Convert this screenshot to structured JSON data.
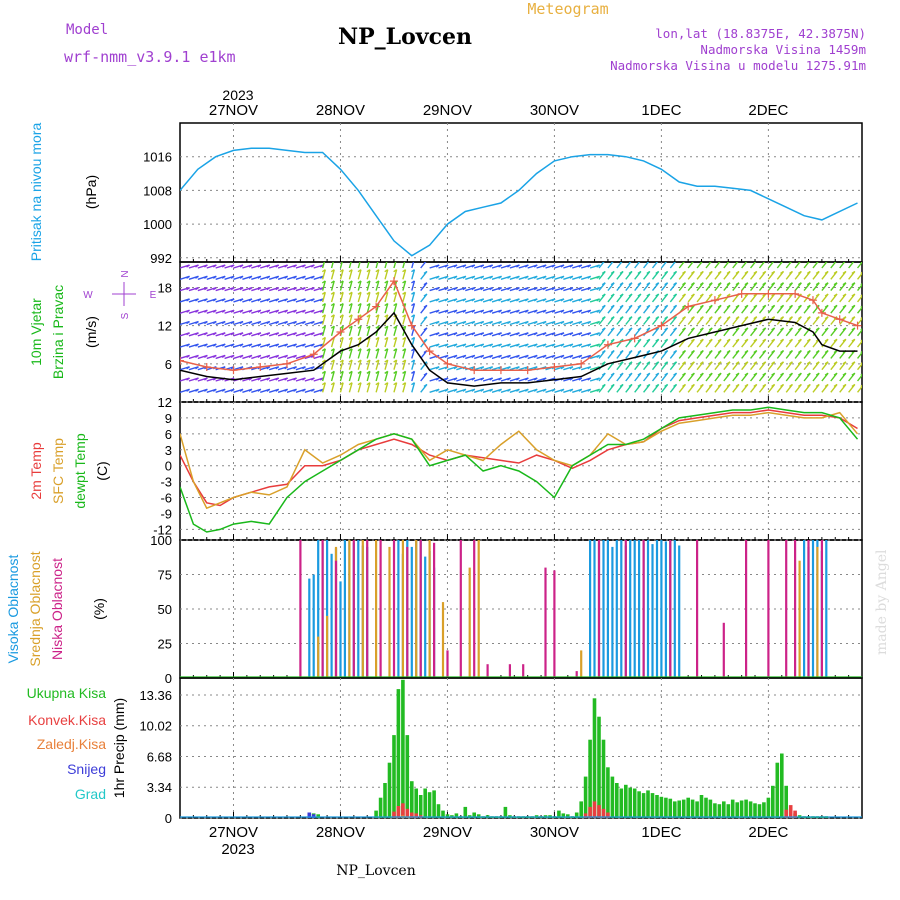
{
  "header": {
    "model_label": "Model",
    "model_name": "wrf-nmm_v3.9.1 e1km",
    "title": "NP_Lovcen",
    "subtitle": "Meteogram",
    "lonlat": "lon,lat (18.8375E, 42.3875N)",
    "elevation": "Nadmorska Visina 1459m",
    "model_elevation": "Nadmorska Visina u modelu 1275.91m",
    "footer": "NP_Lovcen",
    "credit": "made by Angel"
  },
  "time_axis": {
    "year": "2023",
    "days": [
      "27NOV",
      "28NOV",
      "29NOV",
      "30NOV",
      "1DEC",
      "2DEC"
    ]
  },
  "colors": {
    "pressure": "#1aa3e6",
    "wind_speed": "#000000",
    "wind_gust": "#e8604a",
    "temp_2m": "#e83c3c",
    "temp_sfc": "#d9a02a",
    "dewpoint": "#19b81a",
    "cloud_high": "#1a9ae0",
    "cloud_mid": "#d9a02a",
    "cloud_low": "#cc2288",
    "precip_total": "#22bb22",
    "precip_conv": "#e84040",
    "precip_frozen": "#e8803a",
    "precip_snow": "#3c3cd8",
    "precip_hail": "#22c8c8",
    "label_purple": "#a040d0",
    "label_orange": "#e8b040"
  },
  "chart_data": [
    {
      "type": "line",
      "panel": "pressure",
      "ylabel": "Pritisak na nivou mora",
      "unit": "(hPa)",
      "yticks": [
        992,
        1000,
        1008,
        1016
      ],
      "ylim": [
        991,
        1024
      ],
      "x_unit": "hours from 27NOV 00Z",
      "series": [
        {
          "color_key": "pressure",
          "x": [
            -12,
            -8,
            -4,
            0,
            4,
            8,
            12,
            16,
            20,
            24,
            28,
            32,
            36,
            40,
            44,
            48,
            52,
            56,
            60,
            64,
            68,
            72,
            76,
            80,
            84,
            88,
            92,
            96,
            100,
            104,
            108,
            112,
            116,
            120,
            124,
            128,
            132,
            134,
            140
          ],
          "values": [
            1008,
            1013,
            1016,
            1017.5,
            1018,
            1018,
            1017.5,
            1017,
            1017,
            1013,
            1008,
            1002,
            996,
            992.5,
            995,
            1000,
            1003,
            1004,
            1005,
            1008,
            1012,
            1015,
            1016,
            1016.5,
            1016.5,
            1016,
            1015,
            1013,
            1010,
            1009,
            1009,
            1008.5,
            1008,
            1006,
            1004,
            1002,
            1001,
            1002,
            1005
          ]
        }
      ]
    },
    {
      "type": "line",
      "panel": "wind",
      "ylabel": [
        "10m Vjetar",
        "Brzina i Pravac"
      ],
      "unit": "(m/s)",
      "yticks": [
        6,
        12,
        18
      ],
      "ylim": [
        0,
        22
      ],
      "compass": {
        "north": "N",
        "west": "W",
        "east": "E",
        "south": "S"
      },
      "series": [
        {
          "name": "speed",
          "color_key": "wind_speed",
          "x": [
            -12,
            -6,
            0,
            6,
            12,
            18,
            24,
            28,
            32,
            36,
            40,
            44,
            48,
            54,
            60,
            66,
            72,
            78,
            84,
            90,
            96,
            102,
            108,
            114,
            120,
            126,
            130,
            132,
            136,
            140
          ],
          "values": [
            5,
            4,
            3.5,
            4,
            4.5,
            5,
            8,
            9,
            11,
            14,
            9,
            5,
            3,
            2.5,
            3,
            3,
            3.5,
            4,
            6,
            7,
            8,
            10,
            11,
            12,
            13,
            12.5,
            11,
            9,
            8,
            8
          ]
        },
        {
          "name": "gust",
          "color_key": "wind_gust",
          "x": [
            -12,
            -6,
            0,
            6,
            12,
            18,
            24,
            28,
            32,
            36,
            40,
            44,
            48,
            54,
            60,
            66,
            72,
            78,
            84,
            90,
            96,
            102,
            108,
            114,
            120,
            126,
            130,
            132,
            136,
            140
          ],
          "values": [
            6.5,
            5.5,
            5,
            5.5,
            6,
            7.5,
            11,
            13,
            15,
            19,
            12,
            8,
            6,
            5,
            5,
            5,
            5.5,
            6,
            9,
            10,
            12,
            15,
            16,
            17,
            17,
            17,
            16,
            14,
            13,
            12
          ]
        }
      ]
    },
    {
      "type": "line",
      "panel": "temperature",
      "ylabels": [
        "2m Temp",
        "SFC Temp",
        "dewpt Temp"
      ],
      "unit": "(C)",
      "yticks": [
        -12,
        -9,
        -6,
        -3,
        0,
        3,
        6,
        9,
        12
      ],
      "ylim": [
        -14,
        12
      ],
      "series": [
        {
          "name": "2m Temp",
          "color_key": "temp_2m",
          "x": [
            -12,
            -9,
            -6,
            -3,
            0,
            4,
            8,
            12,
            16,
            20,
            24,
            28,
            32,
            36,
            40,
            44,
            48,
            52,
            56,
            60,
            64,
            68,
            72,
            76,
            80,
            84,
            88,
            92,
            96,
            100,
            104,
            108,
            112,
            116,
            120,
            124,
            128,
            132,
            136,
            140
          ],
          "values": [
            2,
            -3,
            -7,
            -7.5,
            -6,
            -5,
            -4,
            -3.5,
            0,
            0,
            1,
            3,
            4,
            5,
            4,
            2,
            1,
            2,
            1.5,
            1,
            0.5,
            2,
            1,
            -0.5,
            1,
            3,
            4,
            4.5,
            7,
            8.5,
            9,
            9.5,
            10,
            10,
            10.5,
            10,
            9.5,
            9.5,
            9,
            7
          ]
        },
        {
          "name": "SFC Temp",
          "color_key": "temp_sfc",
          "x": [
            -12,
            -9,
            -6,
            -3,
            0,
            4,
            8,
            12,
            16,
            20,
            24,
            28,
            32,
            36,
            40,
            44,
            48,
            52,
            56,
            60,
            64,
            68,
            72,
            76,
            80,
            84,
            88,
            92,
            96,
            100,
            104,
            108,
            112,
            116,
            120,
            124,
            128,
            132,
            136,
            140
          ],
          "values": [
            6,
            -3,
            -8,
            -7,
            -6,
            -5,
            -5.5,
            -4,
            3,
            0.5,
            2,
            4,
            5,
            6,
            5,
            1,
            3,
            2,
            1,
            4,
            6.5,
            3,
            1,
            0,
            2,
            6,
            4,
            4.5,
            6.5,
            8,
            8.5,
            9,
            9.5,
            9.5,
            10,
            9.5,
            9,
            9,
            10,
            6
          ]
        },
        {
          "name": "dewpt Temp",
          "color_key": "dewpoint",
          "x": [
            -12,
            -9,
            -6,
            -3,
            0,
            4,
            8,
            12,
            16,
            20,
            24,
            28,
            32,
            36,
            40,
            44,
            48,
            52,
            56,
            60,
            64,
            68,
            72,
            76,
            80,
            84,
            88,
            92,
            96,
            100,
            104,
            108,
            112,
            116,
            120,
            124,
            128,
            132,
            136,
            140
          ],
          "values": [
            -4,
            -11,
            -12.5,
            -12,
            -11,
            -10.5,
            -11,
            -6,
            -3,
            -1,
            1,
            3,
            5,
            6,
            5,
            0,
            1,
            2,
            -1,
            0,
            -1,
            -3,
            -6,
            0,
            2,
            4,
            4,
            5,
            7,
            9,
            9.5,
            10,
            10.5,
            10.5,
            11,
            10.5,
            10,
            10,
            9,
            5
          ]
        }
      ]
    },
    {
      "type": "bar",
      "panel": "clouds",
      "ylabels": [
        "Visoka Oblacnost",
        "Srednja Oblacnost",
        "Niska Oblacnost"
      ],
      "unit": "(%)",
      "yticks": [
        0,
        25,
        50,
        75,
        100
      ],
      "ylim": [
        0,
        100
      ],
      "series": [
        {
          "name": "Visoka Oblacnost",
          "color_key": "cloud_high",
          "x": [
            17,
            18,
            19,
            20,
            21,
            22,
            23,
            24,
            25,
            26,
            27,
            28,
            29,
            30,
            37,
            38,
            39,
            40,
            41,
            42,
            43,
            44,
            45,
            80,
            81,
            82,
            83,
            84,
            85,
            86,
            87,
            88,
            89,
            90,
            91,
            92,
            93,
            94,
            95,
            96,
            97,
            98,
            99,
            100,
            128,
            129,
            130,
            131,
            132,
            133
          ],
          "values": [
            72,
            75,
            100,
            98,
            100,
            90,
            94,
            70,
            100,
            100,
            98,
            100,
            96,
            95,
            100,
            90,
            100,
            95,
            100,
            100,
            88,
            92,
            80,
            100,
            100,
            98,
            100,
            100,
            95,
            100,
            100,
            96,
            100,
            100,
            100,
            98,
            100,
            97,
            100,
            100,
            99,
            100,
            100,
            96,
            100,
            95,
            100,
            100,
            92,
            100
          ]
        },
        {
          "name": "Srednja Oblacnost",
          "color_key": "cloud_mid",
          "x": [
            19,
            21,
            23,
            26,
            29,
            32,
            35,
            38,
            41,
            44,
            47,
            53,
            55,
            78,
            127,
            131
          ],
          "values": [
            30,
            45,
            95,
            100,
            100,
            100,
            95,
            100,
            100,
            100,
            55,
            80,
            100,
            20,
            85,
            95
          ]
        },
        {
          "name": "Niska Oblacnost",
          "color_key": "cloud_low",
          "x": [
            15,
            20,
            23,
            27,
            30,
            33,
            36,
            39,
            42,
            45,
            48,
            51,
            54,
            57,
            62,
            65,
            70,
            72,
            77,
            82,
            88,
            92,
            98,
            104,
            110,
            115,
            120,
            124,
            126,
            129,
            132
          ],
          "values": [
            100,
            100,
            85,
            100,
            100,
            100,
            100,
            95,
            100,
            98,
            20,
            100,
            100,
            10,
            10,
            10,
            80,
            78,
            5,
            100,
            100,
            100,
            100,
            100,
            40,
            100,
            100,
            100,
            100,
            100,
            100
          ]
        }
      ]
    },
    {
      "type": "bar",
      "panel": "precip",
      "ylabels": [
        "Ukupna Kisa",
        "Konvek.Kisa",
        "Zaledj.Kisa",
        "Snijeg",
        "Grad"
      ],
      "ylabel": "1hr Precip (mm)",
      "yticks": [
        0,
        3.34,
        6.68,
        10.02,
        13.36
      ],
      "ylim": [
        0,
        15.2
      ],
      "series": [
        {
          "name": "Ukupna Kisa",
          "color_key": "precip_total",
          "x": [
            18,
            19,
            32,
            33,
            34,
            35,
            36,
            37,
            38,
            39,
            40,
            41,
            42,
            43,
            44,
            45,
            46,
            47,
            48,
            49,
            50,
            51,
            52,
            53,
            54,
            55,
            56,
            57,
            58,
            59,
            60,
            61,
            62,
            63,
            64,
            65,
            66,
            67,
            68,
            69,
            70,
            71,
            72,
            73,
            74,
            75,
            76,
            77,
            78,
            79,
            80,
            81,
            82,
            83,
            84,
            85,
            86,
            87,
            88,
            89,
            90,
            91,
            92,
            93,
            94,
            95,
            96,
            97,
            98,
            99,
            100,
            101,
            102,
            103,
            104,
            105,
            106,
            107,
            108,
            109,
            110,
            111,
            112,
            113,
            114,
            115,
            116,
            117,
            118,
            119,
            120,
            121,
            122,
            123,
            124,
            125,
            126,
            127,
            128,
            129,
            130,
            131,
            132,
            133
          ],
          "values": [
            0.5,
            0.4,
            0.8,
            2.2,
            3.8,
            6.0,
            9.0,
            14.0,
            15.0,
            9.0,
            4.0,
            3.2,
            2.5,
            3.2,
            2.8,
            3.0,
            1.5,
            0.8,
            0.4,
            0.3,
            0.5,
            0.2,
            1.2,
            0.3,
            0.6,
            0.4,
            0.2,
            0.3,
            0.2,
            0.2,
            0.2,
            1.2,
            0.3,
            0.2,
            0.2,
            0.2,
            0.2,
            0.2,
            0.3,
            0.2,
            0.3,
            0.3,
            0.2,
            0.8,
            0.5,
            0.4,
            0.2,
            0.6,
            1.8,
            4.5,
            8.5,
            13.0,
            11.0,
            8.5,
            5.5,
            4.5,
            3.8,
            3.2,
            3.6,
            3.3,
            3.2,
            2.9,
            2.7,
            3.0,
            2.7,
            2.5,
            2.3,
            2.2,
            2.1,
            1.8,
            1.9,
            2.0,
            2.2,
            2.0,
            1.8,
            2.5,
            2.2,
            2.0,
            1.6,
            1.5,
            1.8,
            1.5,
            2.0,
            1.7,
            1.9,
            2.0,
            1.8,
            1.6,
            1.5,
            1.7,
            2.2,
            3.5,
            6.0,
            7.0,
            3.5,
            1.0,
            0.5,
            0.3,
            0.2,
            0.2,
            0.2,
            0.2,
            0.2,
            0.2
          ]
        },
        {
          "name": "Konvek.Kisa",
          "color_key": "precip_conv",
          "x": [
            36,
            37,
            38,
            39,
            40,
            41,
            42,
            79,
            80,
            81,
            82,
            83,
            84,
            124,
            125,
            126
          ],
          "values": [
            0.7,
            1.3,
            1.6,
            1.0,
            0.6,
            0.5,
            0.3,
            0.5,
            1.2,
            1.8,
            1.4,
            1.0,
            0.6,
            0.9,
            1.4,
            0.8
          ]
        },
        {
          "name": "Zaledj.Kisa",
          "color_key": "precip_frozen",
          "x": [
            38,
            39
          ],
          "values": [
            0.3,
            0.2
          ]
        },
        {
          "name": "Snijeg",
          "color_key": "precip_snow",
          "x": [
            17,
            18
          ],
          "values": [
            0.6,
            0.4
          ]
        },
        {
          "name": "Grad",
          "color_key": "precip_hail",
          "x": [],
          "values": []
        }
      ]
    }
  ]
}
